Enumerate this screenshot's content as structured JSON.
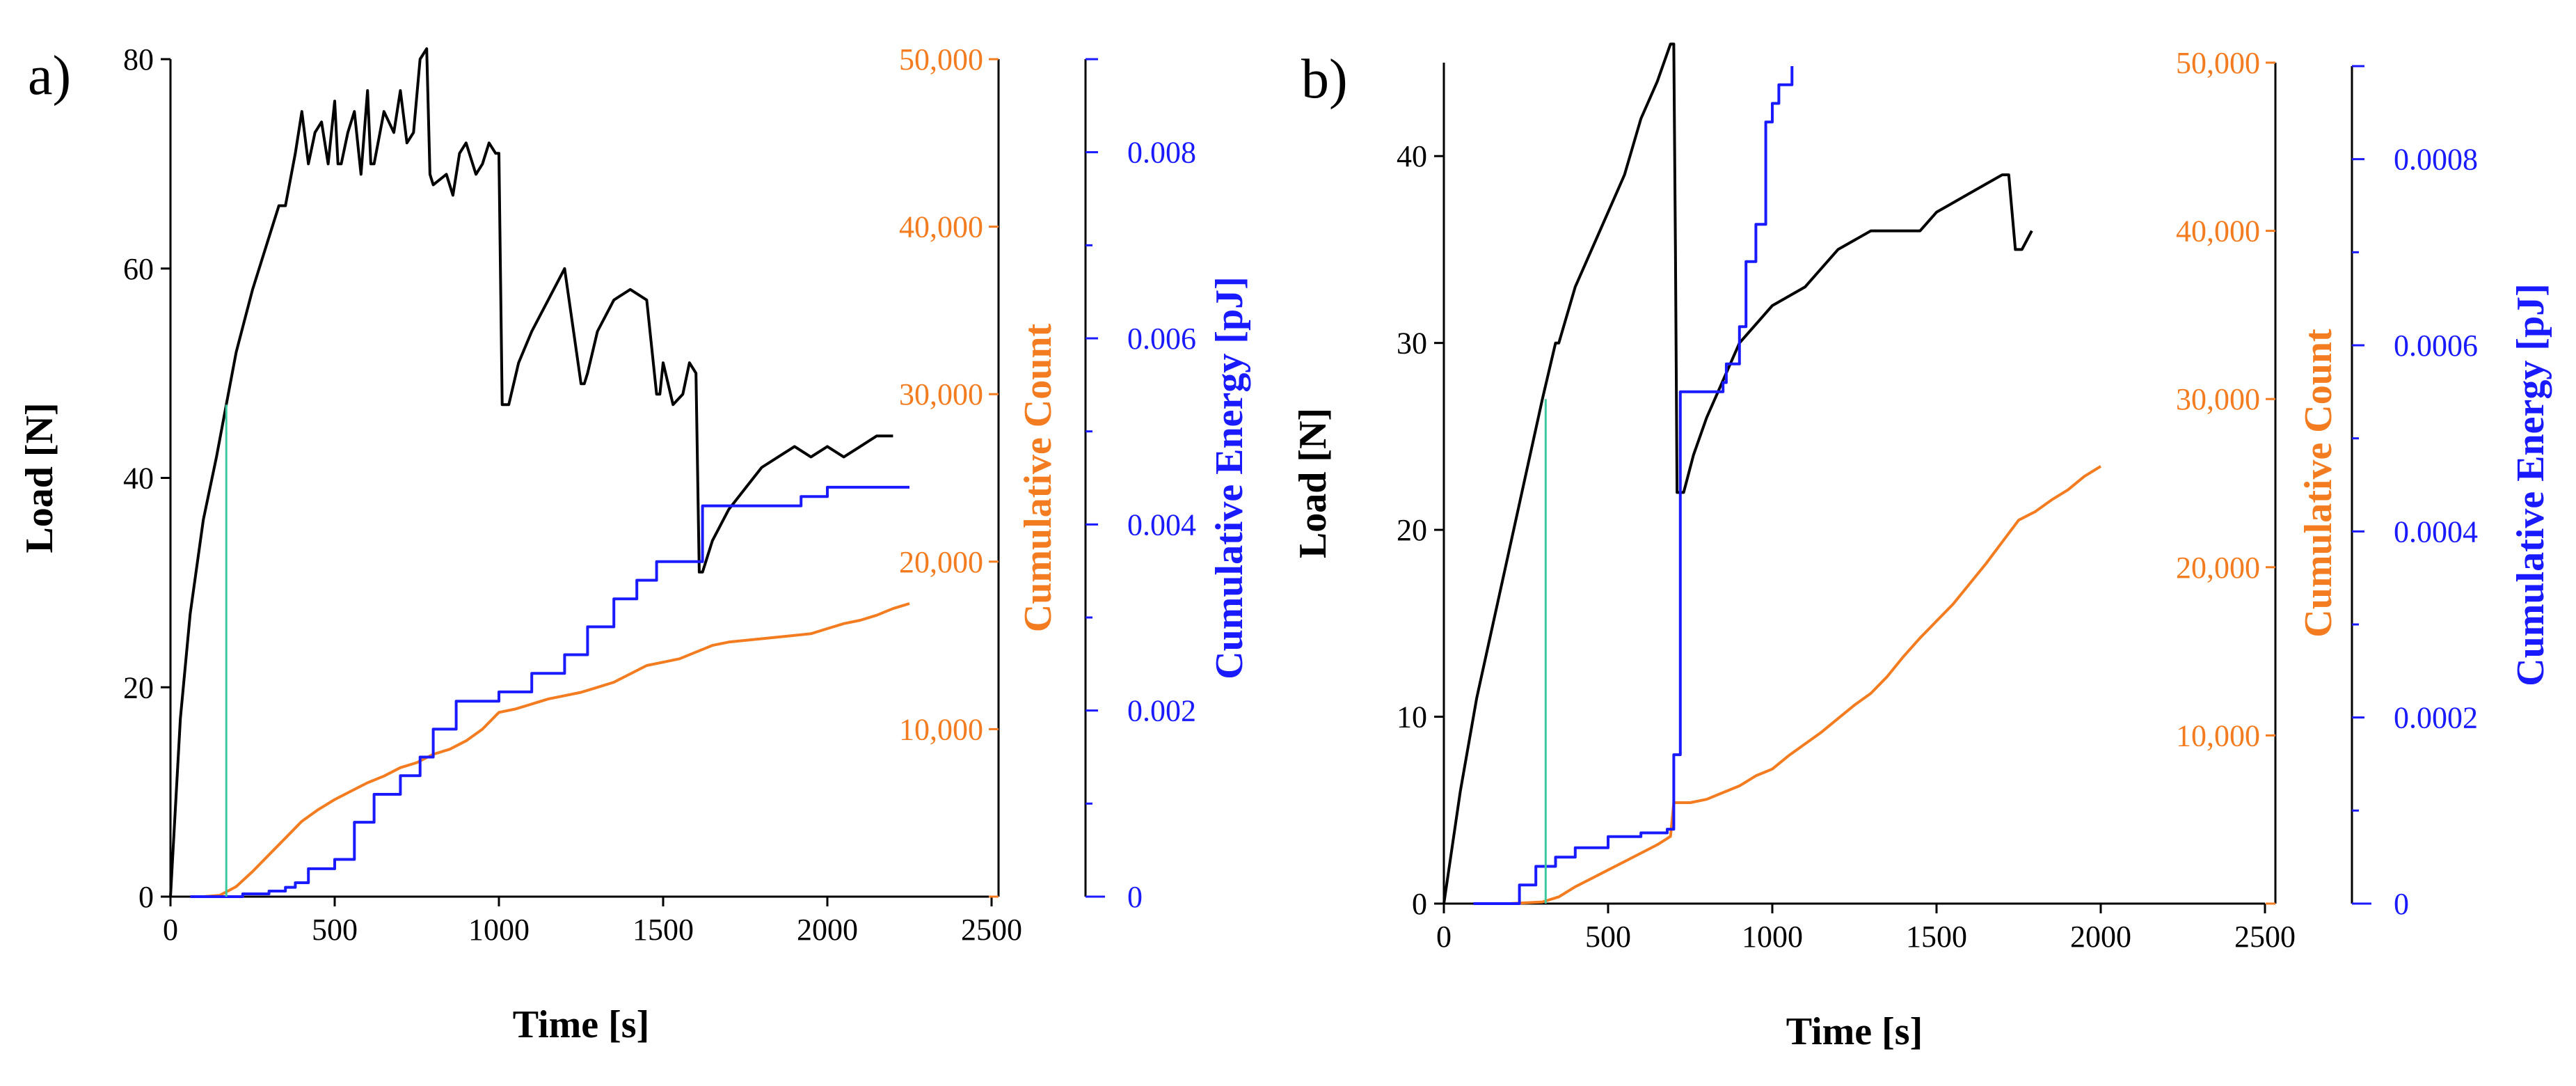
{
  "colors": {
    "load": "#000000",
    "count": "#f47c20",
    "energy": "#1a1aff",
    "marker": "#3cc8a0",
    "axis": "#000000"
  },
  "chart_data": [
    {
      "type": "line",
      "panel_label": "a)",
      "xlabel": "Time [s]",
      "xlim": [
        0,
        2500
      ],
      "xticks": [
        0,
        500,
        1000,
        1500,
        2000,
        2500
      ],
      "xtick_labels": [
        "0",
        "500",
        "1000",
        "1500",
        "2000",
        "2500"
      ],
      "axes": [
        {
          "id": "load",
          "label": "Load [N]",
          "ylim": [
            0,
            80
          ],
          "ticks": [
            0,
            20,
            40,
            60,
            80
          ],
          "tick_labels": [
            "0",
            "20",
            "40",
            "60",
            "80"
          ],
          "color": "#000000"
        },
        {
          "id": "count",
          "label": "Cumulative Count",
          "ylim": [
            0,
            50000
          ],
          "ticks": [
            0,
            10000,
            20000,
            30000,
            40000,
            50000
          ],
          "tick_labels": [
            "",
            "10,000",
            "20,000",
            "30,000",
            "40,000",
            "50,000"
          ],
          "color": "#f47c20"
        },
        {
          "id": "energy",
          "label": "Cumulative Energy [pJ]",
          "ylim": [
            0,
            0.009
          ],
          "ticks": [
            0,
            0.002,
            0.004,
            0.006,
            0.008
          ],
          "tick_labels": [
            "0",
            "0.002",
            "0.004",
            "0.006",
            "0.008"
          ],
          "minor_ticks": [
            0.001,
            0.003,
            0.005,
            0.007
          ],
          "color": "#1a1aff"
        }
      ],
      "series": [
        {
          "name": "Load",
          "axis": "load",
          "color": "#000000",
          "x": [
            0,
            30,
            60,
            100,
            140,
            170,
            200,
            250,
            300,
            330,
            350,
            380,
            400,
            420,
            440,
            460,
            480,
            500,
            510,
            520,
            540,
            560,
            580,
            600,
            610,
            620,
            650,
            680,
            700,
            720,
            740,
            760,
            780,
            790,
            800,
            840,
            860,
            880,
            900,
            930,
            950,
            970,
            990,
            1000,
            1010,
            1030,
            1060,
            1100,
            1150,
            1200,
            1250,
            1260,
            1270,
            1300,
            1350,
            1400,
            1450,
            1480,
            1490,
            1500,
            1530,
            1560,
            1580,
            1600,
            1610,
            1620,
            1650,
            1700,
            1750,
            1800,
            1850,
            1900,
            1950,
            2000,
            2050,
            2100,
            2150,
            2200
          ],
          "values": [
            0,
            17,
            27,
            36,
            42,
            47,
            52,
            58,
            63,
            66,
            66,
            71,
            75,
            70,
            73,
            74,
            70,
            76,
            70,
            70,
            73,
            75,
            69,
            77,
            70,
            70,
            75,
            73,
            77,
            72,
            73,
            80,
            81,
            69,
            68,
            69,
            67,
            71,
            72,
            69,
            70,
            72,
            71,
            71,
            47,
            47,
            51,
            54,
            57,
            60,
            49,
            49,
            50,
            54,
            57,
            58,
            57,
            48,
            48,
            51,
            47,
            48,
            51,
            50,
            31,
            31,
            34,
            37,
            39,
            41,
            42,
            43,
            42,
            43,
            42,
            43,
            44,
            44
          ]
        },
        {
          "name": "Cumulative Count",
          "axis": "count",
          "color": "#f47c20",
          "x": [
            60,
            100,
            150,
            200,
            250,
            300,
            350,
            400,
            450,
            500,
            550,
            600,
            650,
            700,
            750,
            800,
            850,
            900,
            950,
            1000,
            1050,
            1100,
            1150,
            1200,
            1250,
            1300,
            1350,
            1400,
            1450,
            1500,
            1550,
            1600,
            1650,
            1700,
            1750,
            1800,
            1850,
            1900,
            1950,
            2000,
            2050,
            2100,
            2150,
            2200,
            2250
          ],
          "values": [
            0,
            0,
            80,
            600,
            1500,
            2500,
            3500,
            4500,
            5200,
            5800,
            6300,
            6800,
            7200,
            7700,
            8000,
            8500,
            8800,
            9300,
            10000,
            11000,
            11200,
            11500,
            11800,
            12000,
            12200,
            12500,
            12800,
            13300,
            13800,
            14000,
            14200,
            14600,
            15000,
            15200,
            15300,
            15400,
            15500,
            15600,
            15700,
            16000,
            16300,
            16500,
            16800,
            17200,
            17500
          ]
        },
        {
          "name": "Cumulative Energy",
          "axis": "energy",
          "color": "#1a1aff",
          "step": true,
          "x": [
            60,
            220,
            300,
            350,
            380,
            420,
            500,
            560,
            620,
            700,
            760,
            800,
            870,
            900,
            1000,
            1100,
            1200,
            1270,
            1350,
            1420,
            1480,
            1620,
            1920,
            2000,
            2250
          ],
          "values": [
            0,
            3e-05,
            6e-05,
            0.0001,
            0.00015,
            0.0003,
            0.0004,
            0.0008,
            0.0011,
            0.0013,
            0.0015,
            0.0018,
            0.0021,
            0.0021,
            0.0022,
            0.0024,
            0.0026,
            0.0029,
            0.0032,
            0.0034,
            0.0036,
            0.0042,
            0.0043,
            0.0044,
            0.0044
          ]
        },
        {
          "name": "Marker",
          "axis": "load",
          "color": "#3cc8a0",
          "x": [
            170,
            170
          ],
          "values": [
            0,
            47
          ]
        }
      ]
    },
    {
      "type": "line",
      "panel_label": "b)",
      "xlabel": "Time [s]",
      "xlim": [
        0,
        2500
      ],
      "xticks": [
        0,
        500,
        1000,
        1500,
        2000,
        2500
      ],
      "xtick_labels": [
        "0",
        "500",
        "1000",
        "1500",
        "2000",
        "2500"
      ],
      "axes": [
        {
          "id": "load",
          "label": "Load [N]",
          "ylim": [
            0,
            45
          ],
          "ticks": [
            0,
            10,
            20,
            30,
            40
          ],
          "tick_labels": [
            "0",
            "10",
            "20",
            "30",
            "40"
          ],
          "color": "#000000"
        },
        {
          "id": "count",
          "label": "Cumulative Count",
          "ylim": [
            0,
            50000
          ],
          "ticks": [
            0,
            10000,
            20000,
            30000,
            40000,
            50000
          ],
          "tick_labels": [
            "",
            "10,000",
            "20,000",
            "30,000",
            "40,000",
            "50,000"
          ],
          "color": "#f47c20"
        },
        {
          "id": "energy",
          "label": "Cumulative Energy [pJ]",
          "ylim": [
            0,
            0.0009
          ],
          "ticks": [
            0,
            0.0002,
            0.0004,
            0.0006,
            0.0008
          ],
          "tick_labels": [
            "0",
            "0.0002",
            "0.0004",
            "0.0006",
            "0.0008"
          ],
          "minor_ticks": [
            0.0001,
            0.0003,
            0.0005,
            0.0007
          ],
          "color": "#1a1aff"
        }
      ],
      "series": [
        {
          "name": "Load",
          "axis": "load",
          "color": "#000000",
          "x": [
            0,
            50,
            100,
            150,
            200,
            250,
            300,
            340,
            350,
            400,
            450,
            500,
            550,
            600,
            650,
            690,
            700,
            705,
            710,
            730,
            760,
            800,
            850,
            900,
            1000,
            1100,
            1200,
            1300,
            1400,
            1450,
            1500,
            1600,
            1700,
            1720,
            1740,
            1760,
            1790
          ],
          "values": [
            0,
            6,
            11,
            15,
            19,
            23,
            27,
            30,
            30,
            33,
            35,
            37,
            39,
            42,
            44,
            46,
            46,
            35,
            22,
            22,
            24,
            26,
            28,
            30,
            32,
            33,
            35,
            36,
            36,
            36,
            37,
            38,
            39,
            39,
            35,
            35,
            36
          ]
        },
        {
          "name": "Cumulative Count",
          "axis": "count",
          "color": "#f47c20",
          "x": [
            90,
            200,
            300,
            350,
            400,
            450,
            500,
            550,
            600,
            650,
            690,
            700,
            750,
            800,
            850,
            900,
            950,
            1000,
            1050,
            1100,
            1150,
            1200,
            1250,
            1300,
            1350,
            1400,
            1450,
            1500,
            1550,
            1600,
            1650,
            1700,
            1750,
            1800,
            1850,
            1900,
            1950,
            2000
          ],
          "values": [
            0,
            0,
            100,
            400,
            1000,
            1500,
            2000,
            2500,
            3000,
            3500,
            4000,
            6000,
            6000,
            6200,
            6600,
            7000,
            7600,
            8000,
            8800,
            9500,
            10200,
            11000,
            11800,
            12500,
            13500,
            14700,
            15800,
            16800,
            17800,
            19000,
            20200,
            21500,
            22800,
            23300,
            24000,
            24600,
            25400,
            26000
          ]
        },
        {
          "name": "Cumulative Energy",
          "axis": "energy",
          "color": "#1a1aff",
          "step": true,
          "x": [
            90,
            200,
            230,
            280,
            340,
            400,
            500,
            600,
            680,
            700,
            720,
            850,
            860,
            900,
            920,
            950,
            980,
            1000,
            1020,
            1060
          ],
          "values": [
            0,
            0,
            2e-05,
            4e-05,
            5e-05,
            6e-05,
            7.2e-05,
            7.6e-05,
            8e-05,
            0.00016,
            0.00055,
            0.00056,
            0.00058,
            0.00062,
            0.00069,
            0.00073,
            0.00084,
            0.00086,
            0.00088,
            0.0009
          ]
        },
        {
          "name": "Marker",
          "axis": "load",
          "color": "#3cc8a0",
          "x": [
            310,
            310
          ],
          "values": [
            0,
            27
          ]
        }
      ]
    }
  ]
}
